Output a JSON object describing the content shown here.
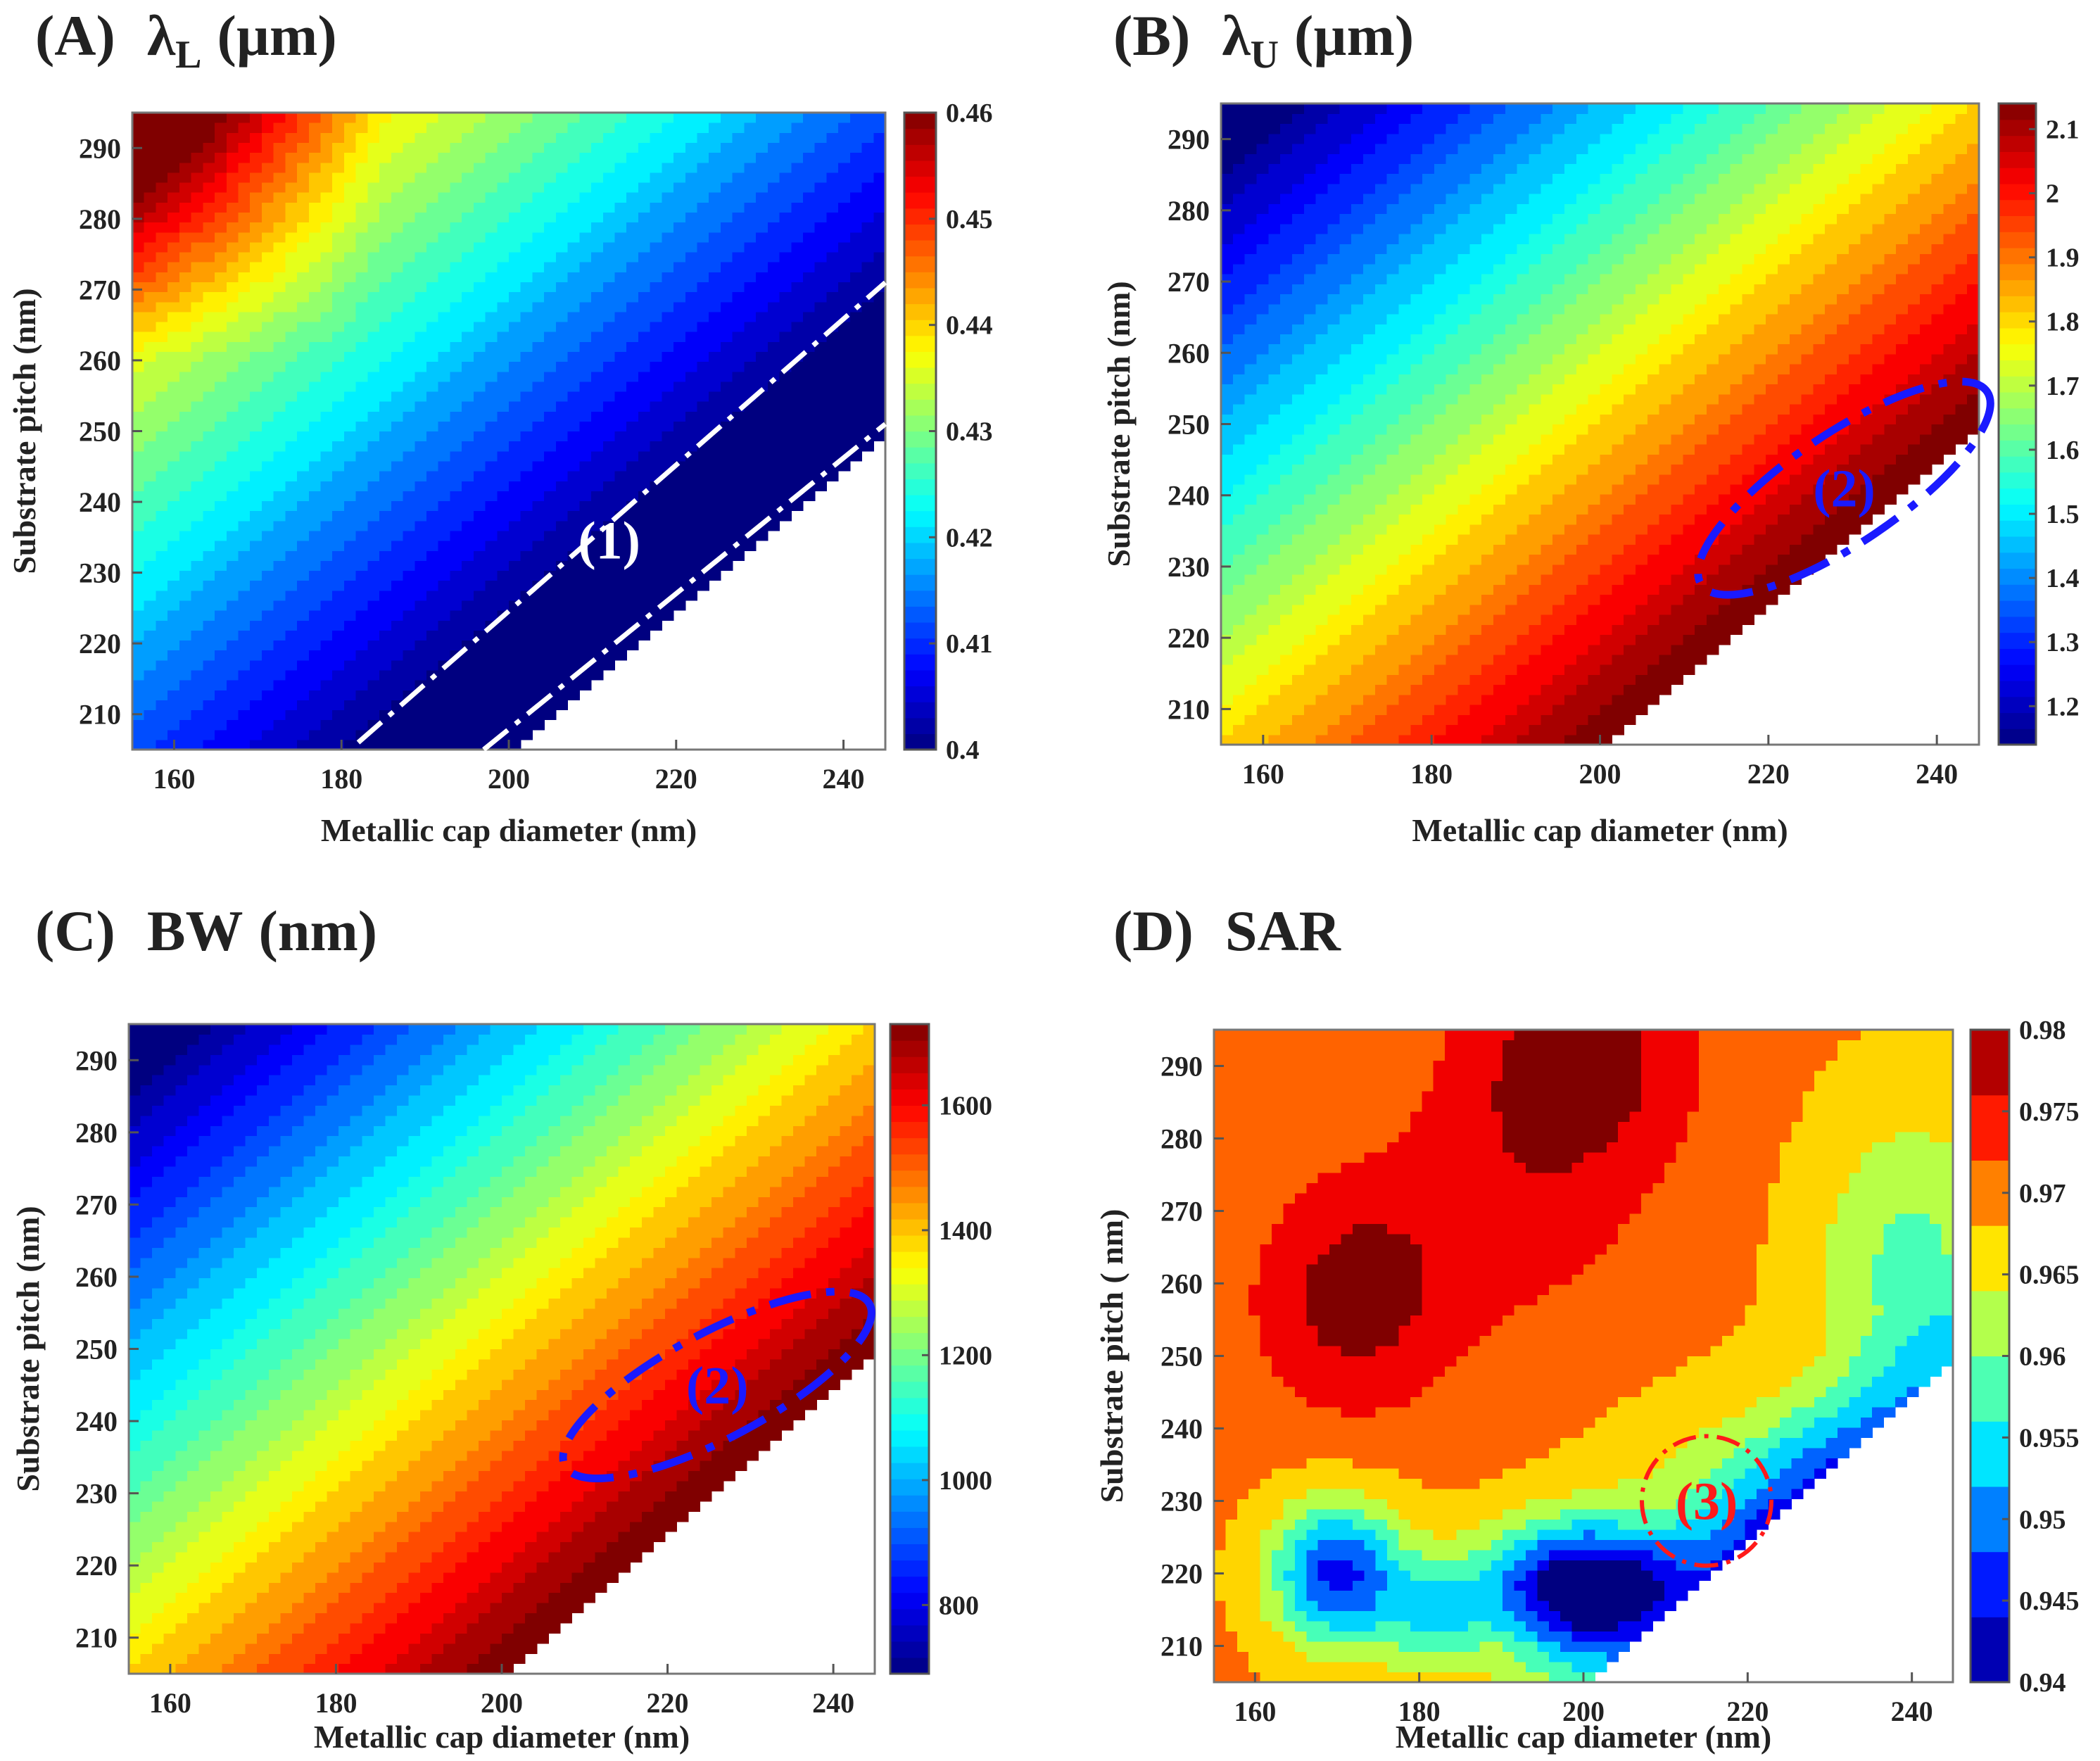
{
  "chart_data": [
    {
      "type": "heatmap",
      "panel_letter": "(A)",
      "title_symbol": "λ",
      "title_subscript": "L",
      "title_unit": "(µm)",
      "xlabel": "Metallic cap diameter (nm)",
      "ylabel": "Substrate pitch (nm)",
      "x_ticks": [
        160,
        180,
        200,
        220,
        240
      ],
      "y_ticks": [
        210,
        220,
        230,
        240,
        250,
        260,
        270,
        280,
        290
      ],
      "xlim": [
        155,
        245
      ],
      "ylim": [
        205,
        295
      ],
      "colorbar_ticks": [
        "0.4",
        "0.41",
        "0.42",
        "0.43",
        "0.44",
        "0.45",
        "0.46"
      ],
      "colorbar_range": [
        0.4,
        0.46
      ],
      "annotation": "(1)",
      "annotation_color": "#ffffff"
    },
    {
      "type": "heatmap",
      "panel_letter": "(B)",
      "title_symbol": "λ",
      "title_subscript": "U",
      "title_unit": "(µm)",
      "xlabel": "Metallic cap diameter (nm)",
      "ylabel": "Substrate pitch (nm)",
      "x_ticks": [
        160,
        180,
        200,
        220,
        240
      ],
      "y_ticks": [
        210,
        220,
        230,
        240,
        250,
        260,
        270,
        280,
        290
      ],
      "xlim": [
        155,
        245
      ],
      "ylim": [
        205,
        295
      ],
      "colorbar_ticks": [
        "1.2",
        "1.3",
        "1.4",
        "1.5",
        "1.6",
        "1.7",
        "1.8",
        "1.9",
        "2",
        "2.1"
      ],
      "colorbar_range": [
        1.14,
        2.14
      ],
      "annotation": "(2)",
      "annotation_color": "#1a1aff"
    },
    {
      "type": "heatmap",
      "panel_letter": "(C)",
      "title_symbol": "BW",
      "title_subscript": "",
      "title_unit": "(nm)",
      "xlabel": "Metallic cap diameter (nm)",
      "ylabel": "Substrate pitch (nm)",
      "x_ticks": [
        160,
        180,
        200,
        220,
        240
      ],
      "y_ticks": [
        210,
        220,
        230,
        240,
        250,
        260,
        270,
        280,
        290
      ],
      "xlim": [
        155,
        245
      ],
      "ylim": [
        205,
        295
      ],
      "colorbar_ticks": [
        "800",
        "1000",
        "1200",
        "1400",
        "1600"
      ],
      "colorbar_range": [
        690,
        1730
      ],
      "annotation": "(2)",
      "annotation_color": "#1a1aff"
    },
    {
      "type": "heatmap",
      "panel_letter": "(D)",
      "title_symbol": "SAR",
      "title_subscript": "",
      "title_unit": "",
      "xlabel": "Metallic cap diameter (nm)",
      "ylabel": "Substrate pitch ( nm)",
      "x_ticks": [
        160,
        180,
        200,
        220,
        240
      ],
      "y_ticks": [
        210,
        220,
        230,
        240,
        250,
        260,
        270,
        280,
        290
      ],
      "xlim": [
        155,
        245
      ],
      "ylim": [
        205,
        295
      ],
      "colorbar_ticks": [
        "0.94",
        "0.945",
        "0.95",
        "0.955",
        "0.96",
        "0.965",
        "0.97",
        "0.975",
        "0.98"
      ],
      "colorbar_range": [
        0.94,
        0.98
      ],
      "annotation": "(3)",
      "annotation_color": "#ff1a1a"
    }
  ]
}
